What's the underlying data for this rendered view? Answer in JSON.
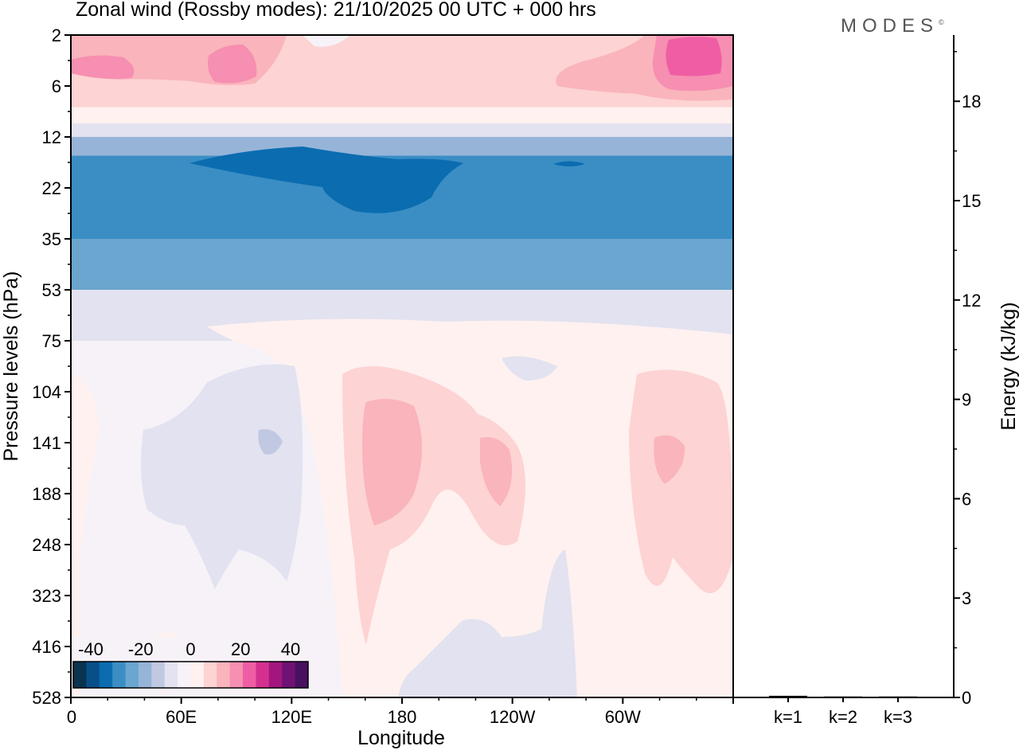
{
  "title": "Zonal wind (Rossby modes):  21/10/2025  00 UTC  + 000 hrs",
  "brand": {
    "text": "MODES",
    "mark": "©"
  },
  "chart_data": [
    {
      "type": "heatmap",
      "title": "Zonal wind (Rossby modes):  21/10/2025  00 UTC  + 000 hrs",
      "xlabel": "Longitude",
      "ylabel": "Pressure levels (hPa)",
      "x_ticks": [
        "0",
        "60E",
        "120E",
        "180",
        "120W",
        "60W"
      ],
      "y_ticks": [
        "2",
        "6",
        "12",
        "22",
        "35",
        "53",
        "75",
        "104",
        "141",
        "188",
        "248",
        "323",
        "416",
        "528"
      ],
      "y_reversed": true,
      "colorbar": {
        "labels": [
          "-40",
          "-20",
          "0",
          "20",
          "40"
        ],
        "colors": [
          "#0a3350",
          "#084f88",
          "#0b6cb0",
          "#3a8ec4",
          "#6aa6cf",
          "#96b4d8",
          "#c0c8e2",
          "#e2e2f0",
          "#f6f2f8",
          "#fff1ef",
          "#fdd3d3",
          "#fab4bc",
          "#f68fb1",
          "#ef5ea4",
          "#d4318f",
          "#a3167f",
          "#701275",
          "#4a1060"
        ]
      },
      "bands": [
        {
          "level": "2",
          "value": 10,
          "color": "#fdd3d3"
        },
        {
          "level": "6",
          "value": 6,
          "color": "#fdd3d3"
        },
        {
          "level": "8",
          "value": 2,
          "color": "#fff1ef"
        },
        {
          "level": "10",
          "value": -2,
          "color": "#e2e2f0"
        },
        {
          "level": "12",
          "value": -10,
          "color": "#96b4d8"
        },
        {
          "level": "15",
          "value": -20,
          "color": "#3a8ec4"
        },
        {
          "level": "22",
          "value": -25,
          "color": "#3a8ec4"
        },
        {
          "level": "35",
          "value": -15,
          "color": "#6aa6cf"
        },
        {
          "level": "53",
          "value": -5,
          "color": "#e2e2f0"
        },
        {
          "level": "75",
          "value": 0,
          "color": "#f6f2f8"
        },
        {
          "level": "528",
          "value": 0,
          "color": "#f6f2f8"
        }
      ]
    },
    {
      "type": "bar",
      "ylabel": "Energy (kJ/kg)",
      "categories": [
        "k=1",
        "k=2",
        "k=3"
      ],
      "values": [
        0.05,
        0.03,
        0.03
      ],
      "ylim": [
        0,
        20
      ],
      "y_ticks": [
        0,
        3,
        6,
        9,
        12,
        15,
        18
      ]
    }
  ]
}
